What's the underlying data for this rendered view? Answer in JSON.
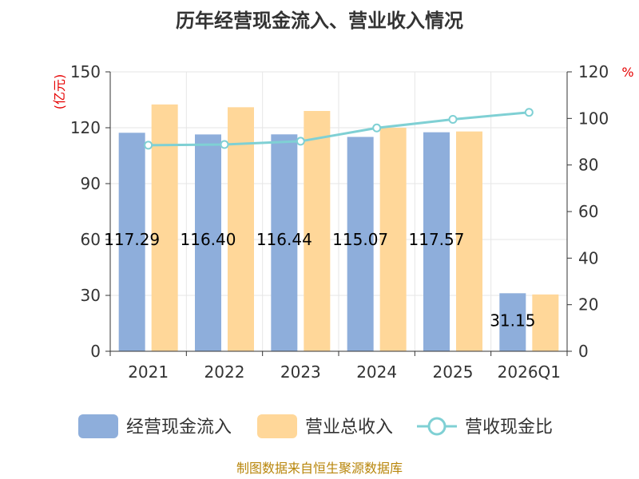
{
  "chart_data": {
    "type": "bar",
    "title": "历年经营现金流入、营业收入情况",
    "categories": [
      "2021",
      "2022",
      "2023",
      "2024",
      "2025",
      "2026Q1"
    ],
    "series": [
      {
        "name": "经营现金流入",
        "type": "bar",
        "axis": "left",
        "color": "#8eaedb",
        "values": [
          117.29,
          116.4,
          116.44,
          115.07,
          117.57,
          31.15
        ],
        "labels": [
          "117.29",
          "116.40",
          "116.44",
          "115.07",
          "117.57",
          "31.15"
        ]
      },
      {
        "name": "营业总收入",
        "type": "bar",
        "axis": "left",
        "color": "#ffd799",
        "values": [
          132.5,
          131.0,
          129.0,
          120.0,
          118.0,
          30.5
        ]
      },
      {
        "name": "营收现金比",
        "type": "line",
        "axis": "right",
        "color": "#7fd0d4",
        "values": [
          88.5,
          88.8,
          90.2,
          95.9,
          99.6,
          102.6
        ]
      }
    ],
    "left_axis": {
      "unit": "(亿元)",
      "ylim": [
        0,
        150
      ],
      "ticks": [
        "0",
        "30",
        "60",
        "90",
        "120",
        "150"
      ]
    },
    "right_axis": {
      "unit": "%",
      "ylim": [
        0,
        120
      ],
      "ticks": [
        "0",
        "20",
        "40",
        "60",
        "80",
        "100",
        "120"
      ]
    },
    "grid": true,
    "legend_position": "bottom"
  },
  "footer": "制图数据来自恒生聚源数据库"
}
